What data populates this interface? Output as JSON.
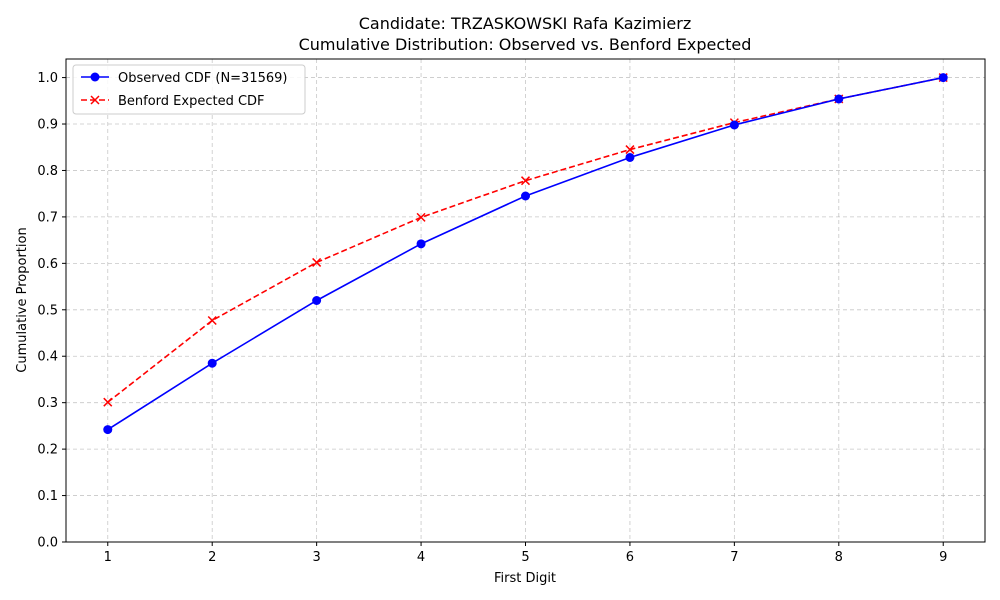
{
  "chart_data": {
    "type": "line",
    "title": "Candidate: TRZASKOWSKI Rafa Kazimierz",
    "subtitle": "Cumulative Distribution: Observed vs. Benford Expected",
    "xlabel": "First Digit",
    "ylabel": "Cumulative Proportion",
    "x": [
      1,
      2,
      3,
      4,
      5,
      6,
      7,
      8,
      9
    ],
    "xlim": [
      0.6,
      9.4
    ],
    "ylim": [
      0.0,
      1.04
    ],
    "x_ticks": [
      "1",
      "2",
      "3",
      "4",
      "5",
      "6",
      "7",
      "8",
      "9"
    ],
    "y_ticks": [
      "0.0",
      "0.1",
      "0.2",
      "0.3",
      "0.4",
      "0.5",
      "0.6",
      "0.7",
      "0.8",
      "0.9",
      "1.0"
    ],
    "grid": true,
    "legend_position": "top-left",
    "series": [
      {
        "name": "Observed CDF (N=31569)",
        "color": "#0000ff",
        "marker": "circle",
        "line_style": "solid",
        "values": [
          0.242,
          0.385,
          0.52,
          0.642,
          0.745,
          0.828,
          0.898,
          0.954,
          1.0
        ]
      },
      {
        "name": "Benford Expected CDF",
        "color": "#ff0000",
        "marker": "x",
        "line_style": "dashed",
        "values": [
          0.301,
          0.477,
          0.602,
          0.699,
          0.778,
          0.845,
          0.903,
          0.954,
          1.0
        ]
      }
    ]
  }
}
